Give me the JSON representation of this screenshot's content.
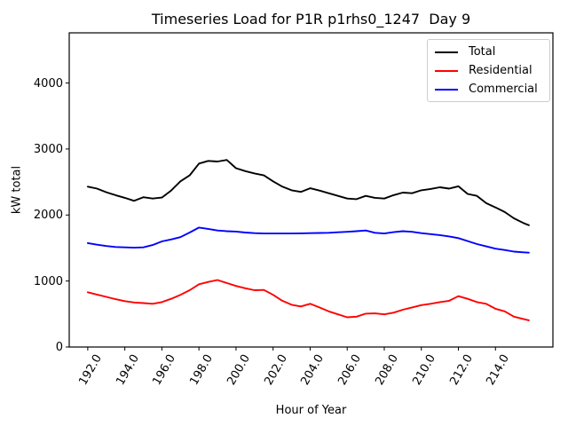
{
  "chart_data": {
    "type": "line",
    "title": "Timeseries Load for P1R p1rhs0_1247  Day 9",
    "xlabel": "Hour of Year",
    "ylabel": "kW total",
    "xlim": [
      191.0,
      217.1
    ],
    "ylim": [
      0,
      4760
    ],
    "grid": false,
    "legend_position": "upper right",
    "x_ticks": [
      192,
      194,
      196,
      198,
      200,
      202,
      204,
      206,
      208,
      210,
      212,
      214
    ],
    "x_tick_labels": [
      "192.0",
      "194.0",
      "196.0",
      "198.0",
      "200.0",
      "202.0",
      "204.0",
      "206.0",
      "208.0",
      "210.0",
      "212.0",
      "214.0"
    ],
    "y_ticks": [
      0,
      1000,
      2000,
      3000,
      4000
    ],
    "y_tick_labels": [
      "0",
      "1000",
      "2000",
      "3000",
      "4000"
    ],
    "x": [
      192.0,
      192.5,
      193.0,
      193.5,
      194.0,
      194.5,
      195.0,
      195.5,
      196.0,
      196.5,
      197.0,
      197.5,
      198.0,
      198.5,
      199.0,
      199.5,
      200.0,
      200.5,
      201.0,
      201.5,
      202.0,
      202.5,
      203.0,
      203.5,
      204.0,
      204.5,
      205.0,
      205.5,
      206.0,
      206.5,
      207.0,
      207.5,
      208.0,
      208.5,
      209.0,
      209.5,
      210.0,
      210.5,
      211.0,
      211.5,
      212.0,
      212.5,
      213.0,
      213.5,
      214.0,
      214.5,
      215.0,
      215.5,
      215.8
    ],
    "series": [
      {
        "name": "Total",
        "color": "#000000",
        "values": [
          2430,
          2400,
          2345,
          2300,
          2260,
          2215,
          2270,
          2250,
          2265,
          2370,
          2510,
          2600,
          2780,
          2820,
          2810,
          2835,
          2710,
          2665,
          2630,
          2600,
          2510,
          2430,
          2375,
          2350,
          2405,
          2370,
          2330,
          2290,
          2250,
          2240,
          2290,
          2260,
          2250,
          2300,
          2340,
          2330,
          2375,
          2395,
          2420,
          2400,
          2435,
          2320,
          2290,
          2180,
          2115,
          2045,
          1950,
          1880,
          1845
        ]
      },
      {
        "name": "Residential",
        "color": "#ff0000",
        "values": [
          830,
          795,
          760,
          725,
          695,
          675,
          665,
          655,
          680,
          730,
          790,
          860,
          950,
          985,
          1015,
          970,
          925,
          890,
          860,
          865,
          790,
          700,
          640,
          615,
          655,
          600,
          540,
          495,
          450,
          460,
          505,
          510,
          495,
          520,
          565,
          600,
          635,
          655,
          680,
          700,
          770,
          730,
          680,
          655,
          580,
          540,
          460,
          425,
          405
        ]
      },
      {
        "name": "Commercial",
        "color": "#0000ff",
        "values": [
          1575,
          1550,
          1530,
          1515,
          1510,
          1505,
          1510,
          1545,
          1600,
          1630,
          1665,
          1735,
          1810,
          1790,
          1765,
          1755,
          1750,
          1735,
          1725,
          1720,
          1720,
          1720,
          1720,
          1722,
          1725,
          1728,
          1730,
          1738,
          1745,
          1755,
          1765,
          1730,
          1720,
          1740,
          1755,
          1745,
          1725,
          1710,
          1695,
          1675,
          1650,
          1605,
          1560,
          1525,
          1490,
          1470,
          1445,
          1435,
          1430
        ]
      }
    ]
  }
}
